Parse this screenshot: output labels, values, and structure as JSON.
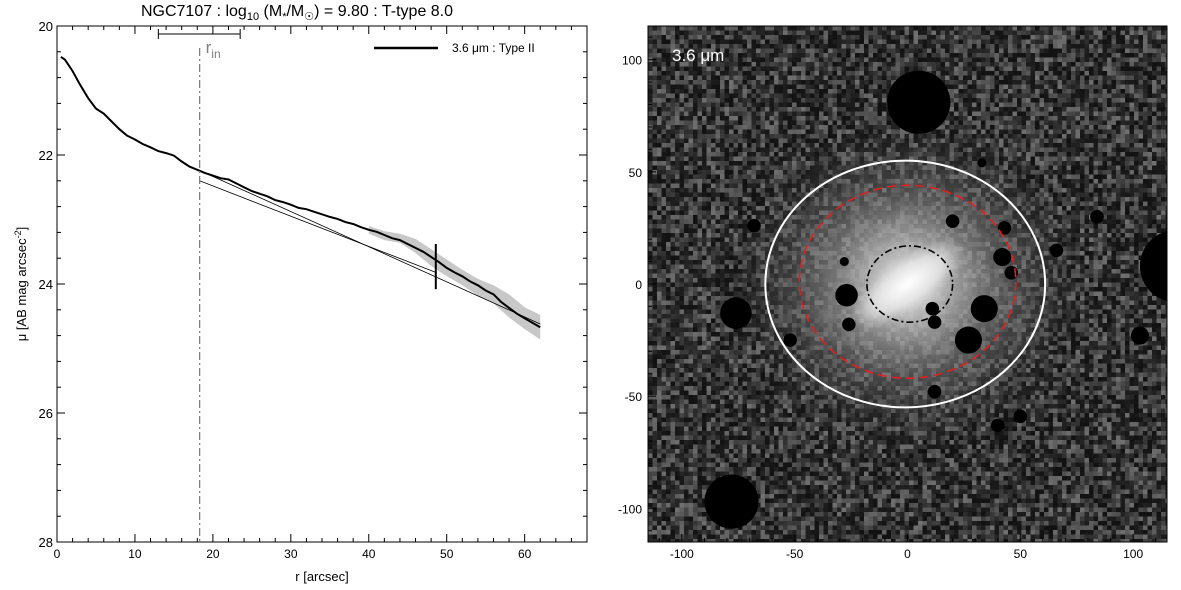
{
  "figure": {
    "title": {
      "galaxy": "NGC7107",
      "sep": " : ",
      "log": "log",
      "log_sub": "10",
      "mass_open": " (M",
      "mass_sub_star": "*",
      "mass_mid": "/M",
      "mass_sub_sun": "☉",
      "mass_close": ") = 9.80",
      "sep2": " : ",
      "ttype": "T-type 8.0"
    }
  },
  "chart_data": [
    {
      "type": "line",
      "xlabel": "r [arcsec]",
      "ylabel_main": "μ [AB mag arcsec",
      "ylabel_sup": "-2",
      "ylabel_close": "]",
      "xlim": [
        0,
        68
      ],
      "ylim": [
        28,
        20
      ],
      "y_inverted": true,
      "xticks": [
        0,
        10,
        20,
        30,
        40,
        50,
        60
      ],
      "yticks": [
        20,
        22,
        24,
        26,
        28
      ],
      "x_minor_step": 2,
      "y_minor_step": 0.4,
      "legend": {
        "label": "3.6 μm : Type II",
        "position": "top-right"
      },
      "series": [
        {
          "name": "3.6 μm : Type II",
          "color": "#000000",
          "x": [
            0.5,
            1,
            2,
            3,
            4,
            5,
            6,
            7,
            8,
            9,
            10,
            11,
            12,
            13,
            14,
            15,
            16,
            17,
            18,
            19,
            20,
            21,
            22,
            23,
            24,
            25,
            26,
            27,
            28,
            29,
            30,
            31,
            32,
            33,
            34,
            35,
            36,
            37,
            38,
            39,
            40,
            41,
            42,
            43,
            44,
            45,
            46,
            47,
            48,
            49,
            50,
            51,
            52,
            53,
            54,
            55,
            56,
            57,
            58,
            59,
            60,
            61,
            62
          ],
          "y": [
            20.48,
            20.52,
            20.7,
            20.92,
            21.12,
            21.28,
            21.36,
            21.48,
            21.6,
            21.7,
            21.76,
            21.83,
            21.88,
            21.94,
            21.97,
            22.01,
            22.1,
            22.18,
            22.23,
            22.28,
            22.32,
            22.36,
            22.38,
            22.44,
            22.5,
            22.56,
            22.6,
            22.64,
            22.7,
            22.73,
            22.77,
            22.82,
            22.84,
            22.88,
            22.92,
            22.96,
            22.99,
            23.04,
            23.07,
            23.12,
            23.16,
            23.19,
            23.24,
            23.29,
            23.32,
            23.38,
            23.44,
            23.5,
            23.58,
            23.66,
            23.75,
            23.82,
            23.88,
            23.96,
            24.02,
            24.1,
            24.16,
            24.28,
            24.37,
            24.46,
            24.53,
            24.6,
            24.67
          ]
        }
      ],
      "uncertainty_band": {
        "color": "#c8c8c8",
        "x": [
          40,
          42,
          44,
          46,
          48,
          50,
          52,
          54,
          56,
          58,
          60,
          62
        ],
        "y_low": [
          23.1,
          23.18,
          23.22,
          23.3,
          23.46,
          23.62,
          23.78,
          23.92,
          24.02,
          24.16,
          24.36,
          24.48
        ],
        "y_high": [
          23.22,
          23.32,
          23.36,
          23.52,
          23.72,
          23.88,
          24.02,
          24.18,
          24.3,
          24.52,
          24.7,
          24.86
        ]
      },
      "fits": [
        {
          "x": [
            18.3,
            62
          ],
          "y": [
            22.24,
            24.62
          ]
        },
        {
          "x": [
            18.3,
            48.6
          ],
          "y": [
            22.4,
            23.82
          ]
        }
      ],
      "r_in": {
        "x": 18.3,
        "range": [
          13,
          23.5
        ],
        "label": "r",
        "label_sub": "in",
        "color": "#808080"
      },
      "break_marker": {
        "x": 48.6,
        "y_range": [
          23.38,
          24.08
        ]
      }
    },
    {
      "type": "heatmap",
      "image_label": "3.6 μm",
      "xlim": [
        -115,
        115
      ],
      "ylim": [
        -115,
        115
      ],
      "xticks": [
        -100,
        -50,
        0,
        50,
        100
      ],
      "yticks": [
        -100,
        -50,
        0,
        50,
        100
      ],
      "minor_step": 10,
      "ellipses": [
        {
          "style": "solid",
          "color": "#ffffff",
          "cx": -1,
          "cy": 0,
          "rx": 62,
          "ry": 55
        },
        {
          "style": "dashed",
          "color": "#e02020",
          "cx": 0,
          "cy": 1,
          "rx": 48,
          "ry": 43
        },
        {
          "style": "dash-dot",
          "color": "#000000",
          "cx": 1,
          "cy": 0,
          "rx": 19,
          "ry": 17
        }
      ],
      "masks": [
        {
          "cx": 5,
          "cy": 81,
          "r": 14
        },
        {
          "cx": 119,
          "cy": 8,
          "r": 16
        },
        {
          "cx": -78,
          "cy": -97,
          "r": 12
        },
        {
          "cx": 34,
          "cy": -11,
          "r": 6
        },
        {
          "cx": 27,
          "cy": -25,
          "r": 6
        },
        {
          "cx": -27,
          "cy": -5,
          "r": 5
        },
        {
          "cx": -76,
          "cy": -13,
          "r": 7
        },
        {
          "cx": 42,
          "cy": 12,
          "r": 4
        },
        {
          "cx": 43,
          "cy": 25,
          "r": 3
        },
        {
          "cx": 11,
          "cy": -11,
          "r": 3
        },
        {
          "cx": 12,
          "cy": -17,
          "r": 3
        },
        {
          "cx": 66,
          "cy": 15,
          "r": 3
        },
        {
          "cx": -68,
          "cy": 26,
          "r": 3
        },
        {
          "cx": 12,
          "cy": -48,
          "r": 3
        },
        {
          "cx": 20,
          "cy": 28,
          "r": 3
        },
        {
          "cx": -26,
          "cy": -18,
          "r": 3
        },
        {
          "cx": 40,
          "cy": -63,
          "r": 3
        },
        {
          "cx": 84,
          "cy": 30,
          "r": 3
        },
        {
          "cx": 50,
          "cy": -59,
          "r": 3
        },
        {
          "cx": 103,
          "cy": -23,
          "r": 4
        },
        {
          "cx": 46,
          "cy": 5,
          "r": 3
        },
        {
          "cx": -52,
          "cy": -25,
          "r": 3
        },
        {
          "cx": 33,
          "cy": 54,
          "r": 2
        },
        {
          "cx": -28,
          "cy": 10,
          "r": 2
        }
      ]
    }
  ]
}
